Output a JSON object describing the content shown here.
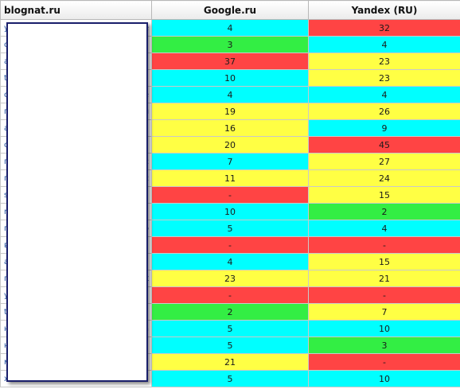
{
  "header": {
    "site": "blognat.ru",
    "google": "Google.ru",
    "yandex": "Yandex (RU)"
  },
  "colors": {
    "cyan": "#00ffff",
    "yellow": "#ffff44",
    "red": "#ff4444",
    "green": "#33ee44"
  },
  "rows": [
    {
      "kw": "y",
      "kw_tail": "e",
      "google": "4",
      "google_color": "cyan",
      "yandex": "32",
      "yandex_color": "red"
    },
    {
      "kw": "c",
      "kw_tail": "",
      "google": "3",
      "google_color": "green",
      "yandex": "4",
      "yandex_color": "cyan"
    },
    {
      "kw": "a",
      "kw_tail": "",
      "google": "37",
      "google_color": "red",
      "yandex": "23",
      "yandex_color": "yellow"
    },
    {
      "kw": "t",
      "kw_tail": "",
      "google": "10",
      "google_color": "cyan",
      "yandex": "23",
      "yandex_color": "yellow"
    },
    {
      "kw": "c",
      "kw_tail": "e",
      "google": "4",
      "google_color": "cyan",
      "yandex": "4",
      "yandex_color": "cyan"
    },
    {
      "kw": "п",
      "kw_tail": "л",
      "google": "19",
      "google_color": "yellow",
      "yandex": "26",
      "yandex_color": "yellow"
    },
    {
      "kw": "a",
      "kw_tail": "",
      "google": "16",
      "google_color": "yellow",
      "yandex": "9",
      "yandex_color": "cyan"
    },
    {
      "kw": "c",
      "kw_tail": "",
      "google": "20",
      "google_color": "yellow",
      "yandex": "45",
      "yandex_color": "red"
    },
    {
      "kw": "п",
      "kw_tail": "c",
      "google": "7",
      "google_color": "cyan",
      "yandex": "27",
      "yandex_color": "yellow"
    },
    {
      "kw": "п",
      "kw_tail": "c",
      "google": "11",
      "google_color": "yellow",
      "yandex": "24",
      "yandex_color": "yellow"
    },
    {
      "kw": "s",
      "kw_tail": "",
      "google": "-",
      "google_color": "red",
      "yandex": "15",
      "yandex_color": "yellow"
    },
    {
      "kw": "n",
      "kw_tail": "",
      "google": "10",
      "google_color": "cyan",
      "yandex": "2",
      "yandex_color": "green"
    },
    {
      "kw": "п",
      "kw_tail": "o",
      "google": "5",
      "google_color": "cyan",
      "yandex": "4",
      "yandex_color": "cyan"
    },
    {
      "kw": "в",
      "kw_tail": "",
      "google": "-",
      "google_color": "red",
      "yandex": "-",
      "yandex_color": "red"
    },
    {
      "kw": "a",
      "kw_tail": "",
      "google": "4",
      "google_color": "cyan",
      "yandex": "15",
      "yandex_color": "yellow"
    },
    {
      "kw": "п",
      "kw_tail": "t",
      "google": "23",
      "google_color": "yellow",
      "yandex": "21",
      "yandex_color": "yellow"
    },
    {
      "kw": "y",
      "kw_tail": "",
      "google": "-",
      "google_color": "red",
      "yandex": "-",
      "yandex_color": "red"
    },
    {
      "kw": "t",
      "kw_tail": "",
      "google": "2",
      "google_color": "green",
      "yandex": "7",
      "yandex_color": "yellow"
    },
    {
      "kw": "н",
      "kw_tail": "a",
      "google": "5",
      "google_color": "cyan",
      "yandex": "10",
      "yandex_color": "cyan"
    },
    {
      "kw": "н",
      "kw_tail": "",
      "google": "5",
      "google_color": "cyan",
      "yandex": "3",
      "yandex_color": "green"
    },
    {
      "kw": "м",
      "kw_tail": "",
      "google": "21",
      "google_color": "yellow",
      "yandex": "-",
      "yandex_color": "red"
    },
    {
      "kw": "x",
      "kw_tail": "",
      "google": "5",
      "google_color": "cyan",
      "yandex": "10",
      "yandex_color": "cyan"
    }
  ]
}
